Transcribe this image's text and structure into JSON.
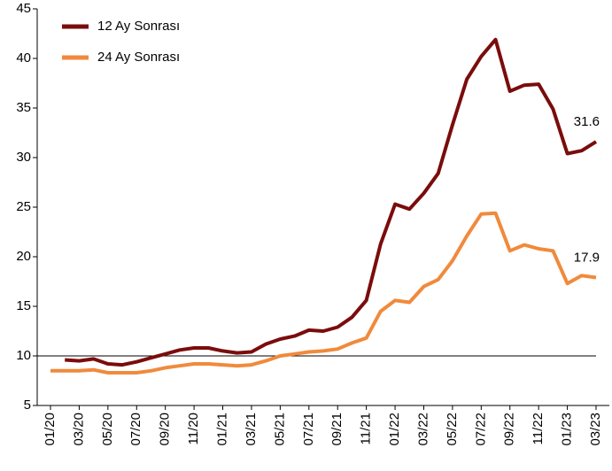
{
  "chart_data": {
    "type": "line",
    "categories": [
      "01/20",
      null,
      "03/20",
      null,
      "05/20",
      null,
      "07/20",
      null,
      "09/20",
      null,
      "11/20",
      null,
      "01/21",
      null,
      "03/21",
      null,
      "05/21",
      null,
      "07/21",
      null,
      "09/21",
      null,
      "11/21",
      null,
      "01/22",
      null,
      "03/22",
      null,
      "05/22",
      null,
      "07/22",
      null,
      "09/22",
      null,
      "11/22",
      null,
      "01/23",
      null,
      "03/23"
    ],
    "series": [
      {
        "name": "12 Ay Sonrası",
        "color": "#7b0c0c",
        "values": [
          null,
          9.6,
          9.5,
          9.7,
          9.2,
          9.1,
          9.4,
          9.8,
          10.2,
          10.6,
          10.8,
          10.8,
          10.5,
          10.3,
          10.4,
          11.2,
          11.7,
          12.0,
          12.6,
          12.5,
          12.9,
          13.9,
          15.6,
          21.3,
          25.3,
          24.8,
          26.4,
          28.4,
          33.3,
          37.9,
          40.2,
          41.9,
          36.7,
          37.3,
          37.4,
          34.9,
          30.4,
          30.7,
          31.6
        ]
      },
      {
        "name": "24 Ay Sonrası",
        "color": "#f08a3c",
        "values": [
          8.5,
          8.5,
          8.5,
          8.6,
          8.3,
          8.3,
          8.3,
          8.5,
          8.8,
          9.0,
          9.2,
          9.2,
          9.1,
          9.0,
          9.1,
          9.5,
          10.0,
          10.2,
          10.4,
          10.5,
          10.7,
          11.3,
          11.8,
          14.5,
          15.6,
          15.4,
          17.0,
          17.7,
          19.6,
          22.1,
          24.3,
          24.4,
          20.6,
          21.2,
          20.8,
          20.6,
          17.3,
          18.1,
          17.9
        ]
      }
    ],
    "ylim": [
      5,
      45
    ],
    "yticks": [
      5,
      10,
      15,
      20,
      25,
      30,
      35,
      40,
      45
    ],
    "reference_line": 10,
    "grid": false,
    "legend": "upper left"
  }
}
